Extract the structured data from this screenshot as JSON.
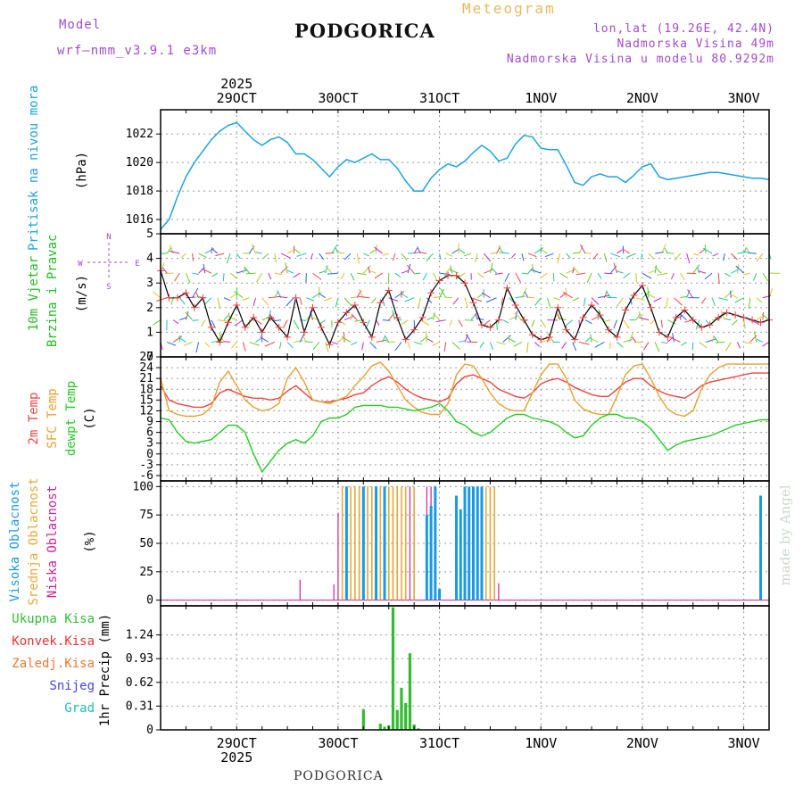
{
  "header": {
    "model_label": "Model",
    "model_name": "wrf–nmm_v3.9.1  e3km",
    "title": "PODGORICA",
    "meteogram": "Meteogram",
    "lonlat": "lon,lat (19.26E, 42.4N)",
    "altitude": "Nadmorska Visina 49m",
    "model_altitude": "Nadmorska Visina u modelu 80.9292m"
  },
  "footer": {
    "location": "PODGORICA",
    "made_by": "made by Angel"
  },
  "time_axis": {
    "year": "2025",
    "date_labels": [
      "29OCT",
      "30OCT",
      "31OCT",
      "1NOV",
      "2NOV",
      "3NOV"
    ]
  },
  "panels": {
    "pressure": {
      "label": "Pritisak na nivou mora",
      "unit": "(hPa)"
    },
    "wind": {
      "label1": "10m Vjetar",
      "label2": "Brzina i Pravac",
      "unit": "(m/s)",
      "compass": {
        "n": "N",
        "s": "S",
        "e": "E",
        "w": "W"
      }
    },
    "temp": {
      "label_2m": "2m Temp",
      "label_sfc": "SFC Temp",
      "label_dew": "dewpt Temp",
      "unit": "(C)"
    },
    "cloud": {
      "label_high": "Visoka Oblacnost",
      "label_mid": "Srednja Oblacnost",
      "label_low": "Niska Oblacnost",
      "unit": "(%)"
    },
    "precip": {
      "unit": "1hr Precip (mm)",
      "legend": [
        "Ukupna Kisa",
        "Konvek.Kisa",
        "Zaledj.Kisa",
        "Snijeg",
        "Grad"
      ]
    }
  },
  "colors": {
    "pressure": "#1ca3e0",
    "wind_speed": "#000000",
    "wind_marker": "#f04040",
    "temp_2m": "#ee4444",
    "temp_sfc": "#e6a030",
    "temp_dew": "#22cc22",
    "cloud_high": "#1a9ae0",
    "cloud_mid": "#e8a83a",
    "cloud_low": "#cc2299",
    "precip_total": "#33bb33",
    "precip_conv": "#ee3333",
    "precip_frz": "#ee7733",
    "precip_snow": "#4444dd",
    "precip_hail": "#22bbbb",
    "title_purple": "#a04cc8"
  },
  "chart_data": [
    {
      "type": "line",
      "title": "Pritisak na nivou mora",
      "ylabel": "(hPa)",
      "ylim": [
        1015,
        1023.7
      ],
      "yticks": [
        1016,
        1018,
        1020,
        1022
      ],
      "x_unit": "hours since 2025-10-28 18:00",
      "xlim": [
        0,
        144
      ],
      "series": [
        {
          "name": "Pressure",
          "x": [
            0,
            2,
            4,
            6,
            8,
            10,
            12,
            14,
            16,
            18,
            20,
            22,
            24,
            26,
            28,
            30,
            32,
            34,
            36,
            38,
            40,
            42,
            44,
            46,
            48,
            50,
            52,
            54,
            56,
            58,
            60,
            62,
            64,
            66,
            68,
            70,
            72,
            74,
            76,
            78,
            80,
            82,
            84,
            86,
            88,
            90,
            92,
            94,
            96,
            98,
            100,
            102,
            104,
            106,
            108,
            110,
            112,
            114,
            116,
            118,
            120,
            122,
            124,
            126,
            128,
            130,
            132,
            134,
            136,
            138,
            140,
            142,
            144
          ],
          "values": [
            1015.3,
            1016.0,
            1017.6,
            1019.0,
            1020.0,
            1020.8,
            1021.6,
            1022.2,
            1022.6,
            1022.8,
            1022.2,
            1021.6,
            1021.2,
            1021.6,
            1021.8,
            1021.4,
            1020.6,
            1020.6,
            1020.2,
            1019.6,
            1019.0,
            1019.7,
            1020.2,
            1020.0,
            1020.3,
            1020.6,
            1020.2,
            1020.2,
            1019.6,
            1018.7,
            1018.0,
            1018.0,
            1018.9,
            1019.5,
            1019.9,
            1019.7,
            1020.1,
            1020.7,
            1021.2,
            1020.8,
            1020.1,
            1020.3,
            1021.3,
            1021.9,
            1021.8,
            1021.0,
            1020.9,
            1020.9,
            1019.8,
            1018.6,
            1018.4,
            1019.0,
            1019.2,
            1019.0,
            1019.0,
            1018.6,
            1019.1,
            1019.7,
            1019.9,
            1019.0,
            1018.8,
            1018.9,
            1019.0,
            1019.1,
            1019.2,
            1019.3,
            1019.3,
            1019.2,
            1019.1,
            1019.0,
            1018.9,
            1018.9,
            1018.8
          ]
        }
      ]
    },
    {
      "type": "line",
      "title": "10m Vjetar Brzina i Pravac",
      "ylabel": "(m/s)",
      "ylim": [
        0,
        5
      ],
      "yticks": [
        0,
        1,
        2,
        3,
        4,
        5
      ],
      "xlim": [
        0,
        144
      ],
      "series": [
        {
          "name": "Wind speed",
          "x": [
            0,
            2,
            4,
            6,
            8,
            10,
            12,
            14,
            16,
            18,
            20,
            22,
            24,
            26,
            28,
            30,
            32,
            34,
            36,
            38,
            40,
            42,
            44,
            46,
            48,
            50,
            52,
            54,
            56,
            58,
            60,
            62,
            64,
            66,
            68,
            70,
            72,
            74,
            76,
            78,
            80,
            82,
            84,
            86,
            88,
            90,
            92,
            94,
            96,
            98,
            100,
            102,
            104,
            106,
            108,
            110,
            112,
            114,
            116,
            118,
            120,
            122,
            124,
            126,
            128,
            130,
            132,
            134,
            136,
            138,
            140,
            142,
            144
          ],
          "values": [
            3.5,
            2.4,
            2.4,
            2.6,
            2.0,
            2.4,
            1.2,
            0.6,
            1.4,
            2.1,
            1.2,
            1.6,
            1.0,
            1.6,
            1.2,
            0.8,
            2.4,
            1.0,
            2.0,
            1.2,
            0.5,
            1.4,
            1.8,
            2.1,
            1.4,
            0.8,
            2.2,
            2.7,
            1.6,
            0.7,
            1.1,
            1.6,
            2.6,
            3.1,
            3.3,
            3.3,
            3.0,
            2.2,
            1.3,
            1.2,
            1.5,
            2.8,
            2.1,
            1.5,
            0.9,
            0.7,
            0.8,
            2.0,
            1.1,
            0.7,
            1.6,
            2.1,
            1.7,
            1.1,
            0.8,
            1.9,
            2.5,
            2.9,
            2.0,
            1.0,
            0.8,
            1.6,
            1.9,
            1.5,
            1.2,
            1.3,
            1.6,
            1.8,
            1.7,
            1.6,
            1.5,
            1.4,
            1.5
          ]
        }
      ]
    },
    {
      "type": "line",
      "title": "2m Temp / SFC Temp / dewpt Temp",
      "ylabel": "(C)",
      "ylim": [
        -7.5,
        27
      ],
      "yticks": [
        -6,
        -3,
        0,
        3,
        6,
        9,
        12,
        15,
        18,
        21,
        24,
        27
      ],
      "xlim": [
        0,
        144
      ],
      "series": [
        {
          "name": "2m Temp",
          "x": [
            0,
            2,
            4,
            6,
            8,
            10,
            12,
            14,
            16,
            18,
            20,
            22,
            24,
            26,
            28,
            30,
            32,
            34,
            36,
            38,
            40,
            42,
            44,
            46,
            48,
            50,
            52,
            54,
            56,
            58,
            60,
            62,
            64,
            66,
            68,
            70,
            72,
            74,
            76,
            78,
            80,
            82,
            84,
            86,
            88,
            90,
            92,
            94,
            96,
            98,
            100,
            102,
            104,
            106,
            108,
            110,
            112,
            114,
            116,
            118,
            120,
            122,
            124,
            126,
            128,
            130,
            132,
            134,
            136,
            138,
            140,
            142,
            144
          ],
          "values": [
            19,
            15,
            14,
            13.5,
            13,
            13,
            14,
            17,
            18,
            17,
            16,
            15.5,
            15.5,
            15,
            15.5,
            17.5,
            19,
            17,
            15,
            14.5,
            14.5,
            15,
            15.5,
            16.5,
            17,
            19,
            20.5,
            21.5,
            20,
            18,
            16.5,
            15.5,
            15,
            14.5,
            15.5,
            19.5,
            21.5,
            22,
            21,
            20,
            18,
            17,
            16,
            15.5,
            17,
            19.5,
            20.5,
            21,
            20,
            18.5,
            17.5,
            16.5,
            16,
            16,
            18,
            20,
            21,
            21,
            19,
            17.5,
            16.5,
            16,
            15.5,
            17,
            19,
            20,
            20.5,
            21,
            21.5,
            22,
            22.5,
            22.5,
            22.5
          ]
        },
        {
          "name": "SFC Temp",
          "x": [
            0,
            2,
            4,
            6,
            8,
            10,
            12,
            14,
            16,
            18,
            20,
            22,
            24,
            26,
            28,
            30,
            32,
            34,
            36,
            38,
            40,
            42,
            44,
            46,
            48,
            50,
            52,
            54,
            56,
            58,
            60,
            62,
            64,
            66,
            68,
            70,
            72,
            74,
            76,
            78,
            80,
            82,
            84,
            86,
            88,
            90,
            92,
            94,
            96,
            98,
            100,
            102,
            104,
            106,
            108,
            110,
            112,
            114,
            116,
            118,
            120,
            122,
            124,
            126,
            128,
            130,
            132,
            134,
            136,
            138,
            140,
            142,
            144
          ],
          "values": [
            21,
            12,
            11,
            10.5,
            10.5,
            11,
            13,
            20,
            23,
            19,
            15,
            13,
            12,
            12.5,
            14,
            21,
            24,
            20,
            15,
            14.5,
            14,
            15,
            16,
            19,
            21.5,
            24.5,
            25.5,
            23,
            19,
            15,
            13,
            11.5,
            11,
            11,
            14,
            22,
            25,
            24.5,
            21,
            17,
            14,
            12.5,
            12,
            12,
            17,
            22,
            25,
            25,
            21,
            15,
            12.5,
            11.5,
            11,
            11,
            16,
            22,
            24.5,
            25,
            21,
            16,
            12.5,
            11,
            10.5,
            12,
            18,
            22,
            24,
            25,
            25,
            25,
            25,
            25,
            25
          ]
        },
        {
          "name": "dewpt Temp",
          "x": [
            0,
            2,
            4,
            6,
            8,
            10,
            12,
            14,
            16,
            18,
            20,
            22,
            24,
            26,
            28,
            30,
            32,
            34,
            36,
            38,
            40,
            42,
            44,
            46,
            48,
            50,
            52,
            54,
            56,
            58,
            60,
            62,
            64,
            66,
            68,
            70,
            72,
            74,
            76,
            78,
            80,
            82,
            84,
            86,
            88,
            90,
            92,
            94,
            96,
            98,
            100,
            102,
            104,
            106,
            108,
            110,
            112,
            114,
            116,
            118,
            120,
            122,
            124,
            126,
            128,
            130,
            132,
            134,
            136,
            138,
            140,
            142,
            144
          ],
          "values": [
            10,
            9.5,
            6,
            3.5,
            3,
            3.5,
            4,
            6,
            8,
            8,
            6,
            0,
            -5,
            -2,
            1,
            3,
            4,
            3,
            5,
            9,
            10,
            10,
            11,
            13,
            13.5,
            13.5,
            13.5,
            13,
            13,
            12.5,
            12,
            12.5,
            13,
            14,
            12,
            9,
            8,
            6,
            5,
            6,
            8,
            10,
            11,
            11,
            10,
            9.5,
            9,
            8,
            6,
            4.5,
            5,
            8,
            10,
            11,
            11,
            10,
            10,
            9,
            7,
            4,
            1,
            2.5,
            3.5,
            4,
            4.5,
            5,
            6,
            7,
            8,
            8.5,
            9,
            9.5,
            9.5
          ]
        }
      ]
    },
    {
      "type": "bar",
      "title": "Oblacnost",
      "ylabel": "(%)",
      "ylim": [
        -5,
        105
      ],
      "yticks": [
        0,
        25,
        50,
        75,
        100
      ],
      "x_unit": "hours since 2025-10-28 18:00",
      "xlim": [
        0,
        144
      ],
      "series": [
        {
          "name": "Niska Oblacnost",
          "x": [
            33,
            41,
            42,
            44,
            46,
            47,
            49,
            50,
            51,
            53,
            55,
            56,
            59,
            60,
            63,
            64,
            65,
            79,
            80
          ],
          "values": [
            18,
            14,
            77,
            100,
            100,
            100,
            100,
            100,
            100,
            100,
            80,
            100,
            100,
            85,
            100,
            100,
            100,
            17,
            15
          ]
        },
        {
          "name": "Srednja Oblacnost",
          "x": [
            43,
            44,
            45,
            46,
            47,
            48,
            49,
            50,
            51,
            52,
            53,
            54,
            55,
            56,
            57,
            58,
            60,
            75,
            76,
            77,
            78,
            79
          ],
          "values": [
            100,
            100,
            100,
            100,
            100,
            100,
            100,
            100,
            100,
            100,
            100,
            100,
            100,
            100,
            100,
            100,
            100,
            100,
            100,
            100,
            100,
            100
          ]
        },
        {
          "name": "Visoka Oblacnost",
          "x": [
            44,
            48,
            51,
            53,
            63,
            64,
            65,
            66,
            70,
            71,
            72,
            73,
            74,
            75,
            76,
            142
          ],
          "values": [
            100,
            100,
            100,
            100,
            75,
            83,
            100,
            10,
            92,
            80,
            100,
            100,
            100,
            100,
            100,
            92
          ]
        }
      ]
    },
    {
      "type": "bar",
      "title": "1hr Precip",
      "ylabel": "1hr Precip (mm)",
      "ylim": [
        0,
        1.62
      ],
      "yticks": [
        0,
        0.31,
        0.62,
        0.93,
        1.24
      ],
      "xlim": [
        0,
        144
      ],
      "series": [
        {
          "name": "Ukupna Kisa",
          "x": [
            48,
            52,
            53,
            54,
            55,
            56,
            57,
            58,
            59,
            60,
            61
          ],
          "values": [
            0.27,
            0.08,
            0.04,
            0.06,
            1.6,
            0.26,
            0.55,
            0.35,
            1.0,
            0.07,
            0.02
          ]
        }
      ]
    }
  ]
}
